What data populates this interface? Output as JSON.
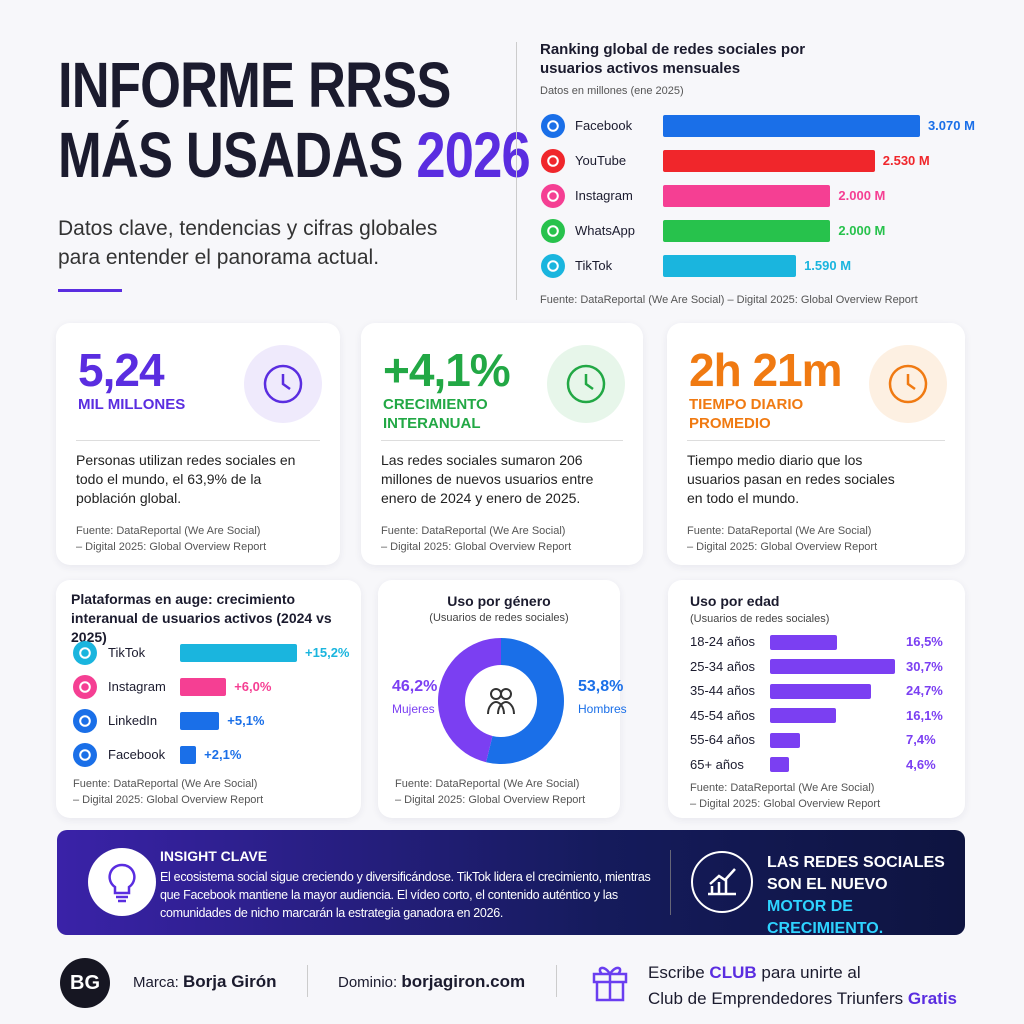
{
  "header": {
    "title_line1": "INFORME RRSS",
    "title_line2": "MÁS USADAS",
    "title_highlight": "2026",
    "subtitle": "Datos clave, tendencias y cifras globales para entender el panorama actual."
  },
  "stats": [
    {
      "value": "5,24",
      "label": "MIL MILLONES",
      "text": "Personas utilizan redes sociales en todo el mundo, el 63,9% de la población global.",
      "source": "Fuente: DataReportal (We Are Social)\n– Digital 2025: Global Overview Report"
    },
    {
      "value": "+4,1%",
      "label": "CRECIMIENTO INTERANUAL",
      "text": "Las redes sociales sumaron 206 millones de nuevos usuarios entre enero de 2024 y enero de 2025.",
      "source": "Fuente: DataReportal (We Are Social)\n– Digital 2025: Global Overview Report"
    },
    {
      "value": "2h 21m",
      "label": "TIEMPO DIARIO PROMEDIO",
      "text": "Tiempo medio diario que los usuarios pasan en redes sociales en todo el mundo.",
      "source": "Fuente: DataReportal (We Are Social)\n– Digital 2025: Global Overview Report"
    }
  ],
  "chart_data": [
    {
      "type": "bar",
      "title": "Ranking global de redes sociales por usuarios activos mensuales",
      "subtitle": "Datos en millones (ene 2025)",
      "categories": [
        "Facebook",
        "YouTube",
        "Instagram",
        "WhatsApp",
        "TikTok"
      ],
      "values": [
        3070,
        2530,
        2000,
        2000,
        1590
      ],
      "value_labels": [
        "3.070 M",
        "2.530 M",
        "2.000 M",
        "2.000 M",
        "1.590 M"
      ],
      "colors": [
        "#1a6fe8",
        "#f0262b",
        "#f53f93",
        "#27c24c",
        "#1ab5de"
      ],
      "source": "Fuente:  DataReportal (We Are Social) – Digital 2025: Global Overview Report"
    },
    {
      "type": "bar",
      "title": "Plataformas en auge: crecimiento interanual de usuarios activos (2024 vs 2025)",
      "categories": [
        "TikTok",
        "Instagram",
        "LinkedIn",
        "Facebook"
      ],
      "values": [
        15.2,
        6.0,
        5.1,
        2.1
      ],
      "value_labels": [
        "+15,2%",
        "+6,0%",
        "+5,1%",
        "+2,1%"
      ],
      "colors": [
        "#1ab5de",
        "#f53f93",
        "#1a6fe8",
        "#1a6fe8"
      ],
      "source": "Fuente: DataReportal (We Are Social)\n– Digital 2025: Global Overview Report"
    },
    {
      "type": "pie",
      "title": "Uso por género",
      "subtitle": "(Usuarios de redes sociales)",
      "categories": [
        "Mujeres",
        "Hombres"
      ],
      "values": [
        46.2,
        53.8
      ],
      "value_labels": [
        "46,2%",
        "53,8%"
      ],
      "colors": [
        "#7b3ff2",
        "#1a6fe8"
      ],
      "donut": true,
      "source": "Fuente: DataReportal (We Are Social)\n– Digital 2025: Global Overview Report"
    },
    {
      "type": "bar",
      "title": "Uso por edad",
      "subtitle": "(Usuarios de redes sociales)",
      "categories": [
        "18-24 años",
        "25-34 años",
        "35-44 años",
        "45-54 años",
        "55-64 años",
        "65+ años"
      ],
      "values": [
        16.5,
        30.7,
        24.7,
        16.1,
        7.4,
        4.6
      ],
      "value_labels": [
        "16,5%",
        "30,7%",
        "24,7%",
        "16,1%",
        "7,4%",
        "4,6%"
      ],
      "color": "#7b3ff2",
      "source": "Fuente: DataReportal (We Are Social)\n– Digital 2025: Global Overview Report"
    }
  ],
  "insight": {
    "title": "INSIGHT CLAVE",
    "text": "El ecosistema social sigue creciendo y diversificándose. TikTok lidera el crecimiento, mientras que Facebook mantiene la mayor audiencia. El vídeo corto, el contenido auténtico y las comunidades de nicho marcarán la estrategia ganadora en 2026.",
    "claim_start": "LAS REDES SOCIALES SON EL NUEVO",
    "claim_highlight": "MOTOR",
    "claim_end": "DE CRECIMIENTO."
  },
  "footer": {
    "logo": "BG",
    "brand_label": "Marca:",
    "brand": "Borja Girón",
    "domain_label": "Dominio:",
    "domain": "borjagiron.com",
    "cta_start": "Escribe",
    "cta_highlight": "CLUB",
    "cta_mid": "para unirte al",
    "cta_line2": "Club de Emprendedores Triunfers",
    "cta_free": "Gratis"
  }
}
